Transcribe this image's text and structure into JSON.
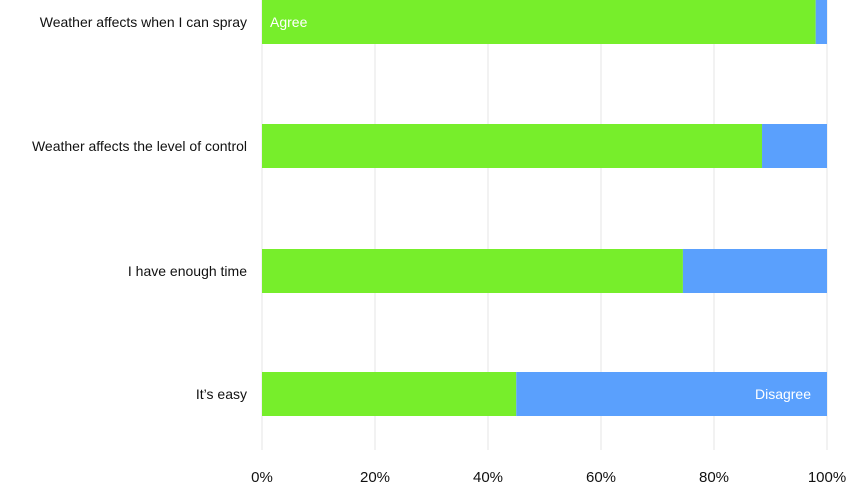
{
  "chart_data": {
    "type": "bar",
    "orientation": "horizontal",
    "stacked": true,
    "categories": [
      "Weather affects when I can spray",
      "Weather affects the level of control",
      "I have enough time",
      "It’s easy"
    ],
    "series": [
      {
        "name": "Agree",
        "color": "#77ee2b",
        "values": [
          98,
          88.5,
          74.5,
          45
        ]
      },
      {
        "name": "Disagree",
        "color": "#5aa0fd",
        "values": [
          2,
          11.5,
          25.5,
          55
        ]
      }
    ],
    "xticks": [
      "0%",
      "20%",
      "40%",
      "60%",
      "80%",
      "100%"
    ],
    "xlim": [
      0,
      100
    ],
    "grid": "vertical",
    "series_labels_inside_bars": true
  }
}
